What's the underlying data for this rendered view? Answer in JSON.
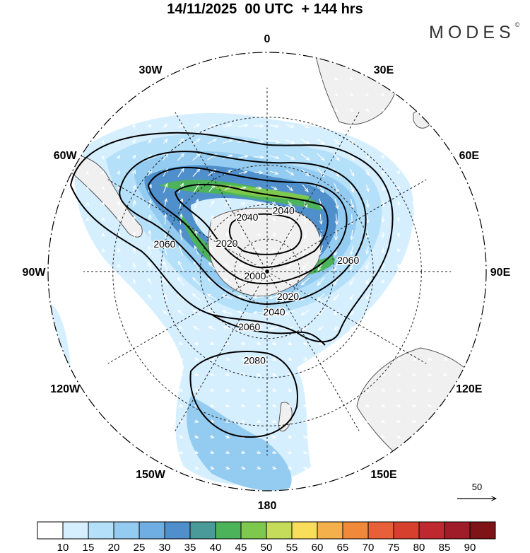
{
  "title": "14/11/2025  00 UTC  + 144 hrs",
  "brand": {
    "name": "MODES",
    "mark": "©"
  },
  "longitudes": [
    {
      "text": "0",
      "lon": 0
    },
    {
      "text": "30E",
      "lon": 30
    },
    {
      "text": "60E",
      "lon": 60
    },
    {
      "text": "90E",
      "lon": 90
    },
    {
      "text": "120E",
      "lon": 120
    },
    {
      "text": "150E",
      "lon": 150
    },
    {
      "text": "180",
      "lon": 180
    },
    {
      "text": "150W",
      "lon": -150
    },
    {
      "text": "120W",
      "lon": -120
    },
    {
      "text": "90W",
      "lon": -90
    },
    {
      "text": "60W",
      "lon": -60
    },
    {
      "text": "30W",
      "lon": -30
    }
  ],
  "contours": [
    "2000",
    "2020",
    "2040",
    "2060",
    "2080"
  ],
  "contour_labels": [
    {
      "text": "2040",
      "lon": -20,
      "lat": -55
    },
    {
      "text": "2040",
      "lon": 15,
      "lat": -52
    },
    {
      "text": "2020",
      "lon": -55,
      "lat": -60
    },
    {
      "text": "2060",
      "lon": -75,
      "lat": -30
    },
    {
      "text": "2060",
      "lon": 82,
      "lat": -42
    },
    {
      "text": "2000",
      "lon": -110,
      "lat": -82
    },
    {
      "text": "2020",
      "lon": 140,
      "lat": -70
    },
    {
      "text": "2040",
      "lon": 170,
      "lat": -65
    },
    {
      "text": "2060",
      "lon": -162,
      "lat": -55
    },
    {
      "text": "2080",
      "lon": -172,
      "lat": -38
    }
  ],
  "vector_reference": {
    "value": "50"
  },
  "colorbar": {
    "levels": [
      "10",
      "15",
      "20",
      "25",
      "30",
      "35",
      "40",
      "45",
      "50",
      "55",
      "60",
      "65",
      "70",
      "75",
      "80",
      "85",
      "90"
    ],
    "colors": [
      "#ffffff",
      "#d6efff",
      "#b5e0f9",
      "#94cbf0",
      "#6faee2",
      "#4f90cc",
      "#4a9a9a",
      "#4db35a",
      "#7ec84d",
      "#c4dc5a",
      "#f8de5a",
      "#f4b04a",
      "#f08a3a",
      "#e8603a",
      "#d8402e",
      "#c02830",
      "#a01c28",
      "#7e1418"
    ]
  },
  "colors": {
    "land": "#f0f0f0",
    "coast": "#555555",
    "grid": "#222222"
  }
}
